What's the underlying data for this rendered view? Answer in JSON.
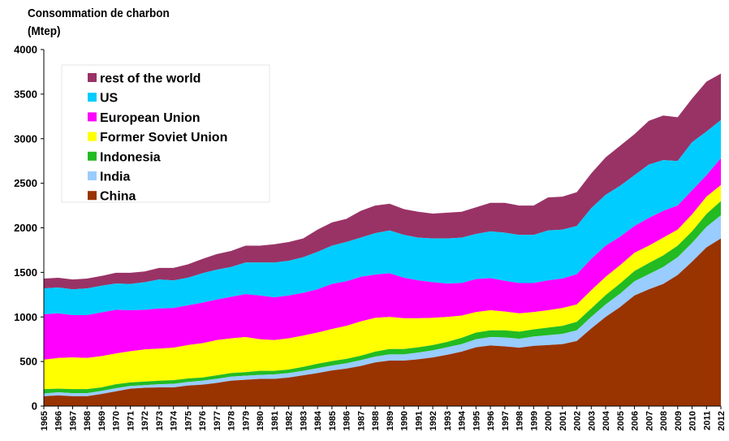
{
  "chart_title": "Consommation de charbon",
  "chart_unit": "(Mtep)",
  "chart_data": {
    "type": "area",
    "stacked": true,
    "title": "Consommation de charbon",
    "ylabel": "(Mtep)",
    "xlabel": "",
    "ylim": [
      0,
      4000
    ],
    "yticks": [
      0,
      500,
      1000,
      1500,
      2000,
      2500,
      3000,
      3500,
      4000
    ],
    "grid": false,
    "legend_position": "top-left",
    "x": [
      1965,
      1966,
      1967,
      1968,
      1969,
      1970,
      1971,
      1972,
      1973,
      1974,
      1975,
      1976,
      1977,
      1978,
      1979,
      1980,
      1981,
      1982,
      1983,
      1984,
      1985,
      1986,
      1987,
      1988,
      1989,
      1990,
      1991,
      1992,
      1993,
      1994,
      1995,
      1996,
      1997,
      1998,
      1999,
      2000,
      2001,
      2002,
      2003,
      2004,
      2005,
      2006,
      2007,
      2008,
      2009,
      2010,
      2011,
      2012
    ],
    "series": [
      {
        "name": "China",
        "color": "#993300",
        "cumulative": [
          110,
          120,
          110,
          110,
          135,
          165,
          195,
          205,
          210,
          210,
          230,
          240,
          260,
          285,
          295,
          305,
          305,
          320,
          345,
          370,
          400,
          420,
          450,
          490,
          510,
          510,
          525,
          545,
          575,
          610,
          660,
          680,
          670,
          655,
          675,
          685,
          695,
          730,
          870,
          1000,
          1110,
          1240,
          1310,
          1370,
          1470,
          1620,
          1780,
          1880
        ]
      },
      {
        "name": "India",
        "color": "#99ccff",
        "cumulative": [
          140,
          155,
          145,
          145,
          170,
          200,
          225,
          235,
          245,
          250,
          270,
          285,
          305,
          330,
          340,
          350,
          355,
          370,
          395,
          425,
          455,
          480,
          515,
          555,
          580,
          580,
          600,
          625,
          660,
          695,
          750,
          775,
          770,
          755,
          780,
          795,
          810,
          850,
          1000,
          1140,
          1260,
          1400,
          1480,
          1560,
          1670,
          1830,
          2010,
          2140
        ]
      },
      {
        "name": "Indonesia",
        "color": "#22bb22",
        "cumulative": [
          190,
          195,
          190,
          190,
          210,
          245,
          265,
          275,
          285,
          290,
          310,
          320,
          345,
          370,
          380,
          395,
          395,
          410,
          440,
          475,
          505,
          530,
          565,
          610,
          640,
          640,
          660,
          685,
          720,
          765,
          825,
          850,
          850,
          835,
          860,
          880,
          900,
          945,
          1095,
          1245,
          1375,
          1515,
          1605,
          1690,
          1800,
          1960,
          2155,
          2300
        ]
      },
      {
        "name": "Former Soviet Union",
        "color": "#ffff00",
        "cumulative": [
          520,
          540,
          545,
          540,
          560,
          590,
          615,
          635,
          645,
          655,
          685,
          705,
          740,
          760,
          775,
          750,
          740,
          760,
          790,
          825,
          865,
          900,
          950,
          990,
          1000,
          985,
          985,
          990,
          1000,
          1015,
          1055,
          1075,
          1060,
          1040,
          1055,
          1075,
          1100,
          1140,
          1300,
          1450,
          1580,
          1720,
          1800,
          1890,
          1980,
          2150,
          2350,
          2480
        ]
      },
      {
        "name": "European Union",
        "color": "#ff00ff",
        "cumulative": [
          1030,
          1040,
          1020,
          1020,
          1050,
          1080,
          1075,
          1080,
          1095,
          1100,
          1130,
          1160,
          1195,
          1225,
          1255,
          1240,
          1220,
          1240,
          1270,
          1310,
          1370,
          1400,
          1450,
          1475,
          1490,
          1440,
          1410,
          1390,
          1375,
          1380,
          1425,
          1435,
          1405,
          1380,
          1380,
          1410,
          1430,
          1480,
          1650,
          1800,
          1900,
          2020,
          2110,
          2190,
          2250,
          2420,
          2590,
          2780
        ]
      },
      {
        "name": "US",
        "color": "#00ccff",
        "cumulative": [
          1320,
          1330,
          1310,
          1320,
          1350,
          1375,
          1370,
          1390,
          1420,
          1410,
          1440,
          1490,
          1530,
          1560,
          1610,
          1610,
          1610,
          1630,
          1670,
          1730,
          1800,
          1840,
          1890,
          1940,
          1970,
          1920,
          1890,
          1880,
          1880,
          1890,
          1930,
          1960,
          1945,
          1920,
          1920,
          1970,
          1980,
          2020,
          2220,
          2370,
          2470,
          2590,
          2710,
          2760,
          2750,
          2960,
          3080,
          3210
        ]
      },
      {
        "name": "rest of the world",
        "color": "#993366",
        "cumulative": [
          1430,
          1440,
          1420,
          1430,
          1460,
          1495,
          1495,
          1510,
          1550,
          1550,
          1590,
          1650,
          1705,
          1740,
          1800,
          1800,
          1815,
          1840,
          1880,
          1980,
          2060,
          2100,
          2190,
          2250,
          2270,
          2210,
          2180,
          2160,
          2170,
          2180,
          2230,
          2280,
          2280,
          2250,
          2250,
          2340,
          2350,
          2400,
          2610,
          2790,
          2920,
          3050,
          3200,
          3260,
          3240,
          3450,
          3640,
          3730
        ]
      }
    ]
  }
}
